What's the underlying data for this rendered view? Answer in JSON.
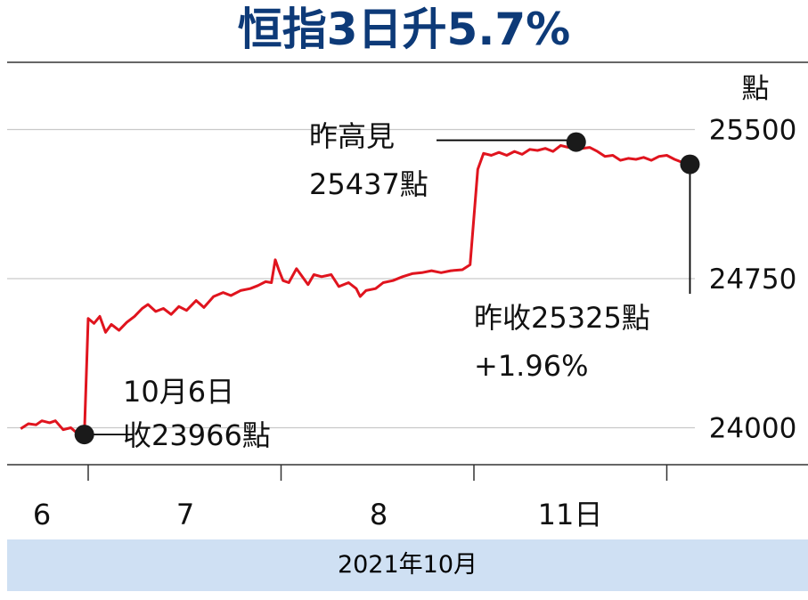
{
  "title": "恒指3日升5.7%",
  "unit": "點",
  "footer": "2021年10月",
  "colors": {
    "title": "#0d3a78",
    "line": "#e0141e",
    "footer_bg": "#cfe0f3",
    "grid": "#c9c9c9"
  },
  "annotations": {
    "start": [
      "10月6日",
      "收23966點"
    ],
    "high": [
      "昨高見",
      "25437點"
    ],
    "close": [
      "昨收25325點",
      "+1.96%"
    ]
  },
  "chart_data": {
    "type": "line",
    "title": "恒指3日升5.7%",
    "ylabel": "點",
    "xlabel": "2021年10月",
    "ylim": [
      23800,
      25680
    ],
    "yticks": [
      24000,
      24750,
      25500
    ],
    "grid": true,
    "day_ticks": [
      {
        "label": "6",
        "t": 0
      },
      {
        "label": "7",
        "t": 1
      },
      {
        "label": "8",
        "t": 2
      },
      {
        "label": "11日",
        "t": 3
      }
    ],
    "series": [
      {
        "name": "",
        "values": [
          [
            -0.35,
            23995
          ],
          [
            -0.31,
            24020
          ],
          [
            -0.27,
            24015
          ],
          [
            -0.24,
            24035
          ],
          [
            -0.2,
            24025
          ],
          [
            -0.17,
            24035
          ],
          [
            -0.13,
            23990
          ],
          [
            -0.09,
            24000
          ],
          [
            -0.06,
            23975
          ],
          [
            -0.02,
            23966
          ],
          [
            0.0,
            24550
          ],
          [
            0.03,
            24525
          ],
          [
            0.06,
            24560
          ],
          [
            0.09,
            24480
          ],
          [
            0.12,
            24520
          ],
          [
            0.16,
            24490
          ],
          [
            0.2,
            24530
          ],
          [
            0.24,
            24560
          ],
          [
            0.28,
            24600
          ],
          [
            0.31,
            24620
          ],
          [
            0.35,
            24585
          ],
          [
            0.39,
            24600
          ],
          [
            0.43,
            24570
          ],
          [
            0.47,
            24610
          ],
          [
            0.51,
            24590
          ],
          [
            0.56,
            24640
          ],
          [
            0.6,
            24605
          ],
          [
            0.65,
            24660
          ],
          [
            0.7,
            24680
          ],
          [
            0.74,
            24665
          ],
          [
            0.79,
            24690
          ],
          [
            0.84,
            24700
          ],
          [
            0.88,
            24715
          ],
          [
            0.92,
            24735
          ],
          [
            0.95,
            24730
          ],
          [
            0.97,
            24845
          ],
          [
            0.99,
            24790
          ],
          [
            1.01,
            24740
          ],
          [
            1.04,
            24730
          ],
          [
            1.08,
            24800
          ],
          [
            1.11,
            24760
          ],
          [
            1.14,
            24720
          ],
          [
            1.17,
            24770
          ],
          [
            1.21,
            24760
          ],
          [
            1.26,
            24770
          ],
          [
            1.3,
            24710
          ],
          [
            1.35,
            24730
          ],
          [
            1.39,
            24700
          ],
          [
            1.41,
            24660
          ],
          [
            1.44,
            24690
          ],
          [
            1.49,
            24700
          ],
          [
            1.53,
            24730
          ],
          [
            1.58,
            24740
          ],
          [
            1.63,
            24760
          ],
          [
            1.68,
            24775
          ],
          [
            1.73,
            24780
          ],
          [
            1.78,
            24790
          ],
          [
            1.83,
            24780
          ],
          [
            1.88,
            24790
          ],
          [
            1.94,
            24795
          ],
          [
            1.98,
            24820
          ],
          [
            2.02,
            25300
          ],
          [
            2.05,
            25380
          ],
          [
            2.09,
            25370
          ],
          [
            2.13,
            25385
          ],
          [
            2.17,
            25370
          ],
          [
            2.21,
            25390
          ],
          [
            2.25,
            25375
          ],
          [
            2.29,
            25400
          ],
          [
            2.33,
            25395
          ],
          [
            2.37,
            25405
          ],
          [
            2.41,
            25390
          ],
          [
            2.45,
            25420
          ],
          [
            2.49,
            25410
          ],
          [
            2.53,
            25437
          ],
          [
            2.56,
            25405
          ],
          [
            2.6,
            25410
          ],
          [
            2.64,
            25390
          ],
          [
            2.68,
            25365
          ],
          [
            2.72,
            25370
          ],
          [
            2.76,
            25345
          ],
          [
            2.8,
            25355
          ],
          [
            2.84,
            25350
          ],
          [
            2.88,
            25360
          ],
          [
            2.92,
            25345
          ],
          [
            2.96,
            25365
          ],
          [
            3.0,
            25370
          ],
          [
            3.04,
            25350
          ],
          [
            3.08,
            25335
          ],
          [
            3.12,
            25325
          ]
        ]
      }
    ]
  }
}
